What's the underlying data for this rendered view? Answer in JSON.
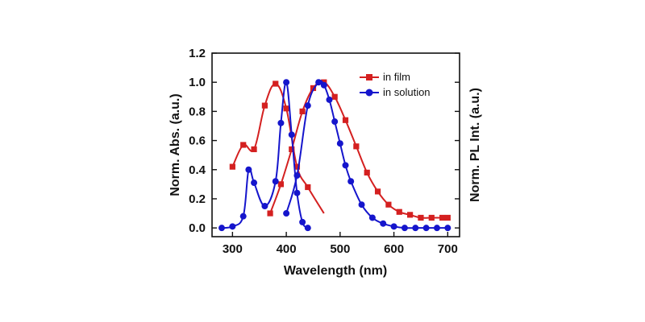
{
  "chart_data": {
    "type": "line",
    "xlabel": "Wavelength (nm)",
    "ylabel": "Norm. Abs. (a.u.)",
    "y2label": "Norm. PL Int. (a.u.)",
    "xlim": [
      262,
      722
    ],
    "ylim": [
      -0.06,
      1.2
    ],
    "xticks": [
      300,
      400,
      500,
      600,
      700
    ],
    "yticks": [
      0.0,
      0.2,
      0.4,
      0.6,
      0.8,
      1.0,
      1.2
    ],
    "grid": false,
    "legend": "top-right",
    "legend_entries": [
      "in film",
      "in solution"
    ],
    "colors": {
      "film": "#d42020",
      "solution": "#1515cc"
    },
    "series": [
      {
        "name": "in film",
        "group": "absorption",
        "x": [
          300,
          320,
          340,
          360,
          380,
          400,
          420,
          440,
          470
        ],
        "y": [
          0.42,
          0.57,
          0.54,
          0.84,
          0.99,
          0.82,
          0.42,
          0.28,
          0.1
        ]
      },
      {
        "name": "in film",
        "group": "emission",
        "x": [
          370,
          390,
          410,
          430,
          450,
          470,
          490,
          510,
          530,
          550,
          570,
          590,
          610,
          630,
          650,
          670,
          690,
          700
        ],
        "y": [
          0.1,
          0.3,
          0.54,
          0.8,
          0.96,
          1.0,
          0.9,
          0.74,
          0.56,
          0.38,
          0.25,
          0.16,
          0.11,
          0.09,
          0.07,
          0.07,
          0.07,
          0.07
        ]
      },
      {
        "name": "in solution",
        "group": "absorption",
        "x": [
          280,
          300,
          320,
          330,
          340,
          360,
          380,
          390,
          400,
          410,
          420,
          430,
          440
        ],
        "y": [
          0.0,
          0.01,
          0.08,
          0.4,
          0.31,
          0.15,
          0.32,
          0.72,
          1.0,
          0.64,
          0.24,
          0.04,
          0.0
        ]
      },
      {
        "name": "in solution",
        "group": "emission",
        "x": [
          400,
          420,
          440,
          460,
          470,
          480,
          490,
          500,
          510,
          520,
          540,
          560,
          580,
          600,
          620,
          640,
          660,
          680,
          700
        ],
        "y": [
          0.1,
          0.36,
          0.84,
          1.0,
          0.98,
          0.88,
          0.73,
          0.58,
          0.43,
          0.32,
          0.16,
          0.07,
          0.03,
          0.01,
          0.0,
          0.0,
          0.0,
          0.0,
          0.0
        ]
      }
    ]
  }
}
